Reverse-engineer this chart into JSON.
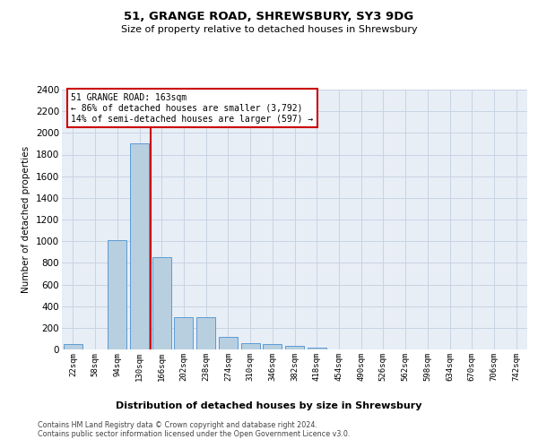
{
  "title1": "51, GRANGE ROAD, SHREWSBURY, SY3 9DG",
  "title2": "Size of property relative to detached houses in Shrewsbury",
  "xlabel": "Distribution of detached houses by size in Shrewsbury",
  "ylabel": "Number of detached properties",
  "categories": [
    "22sqm",
    "58sqm",
    "94sqm",
    "130sqm",
    "166sqm",
    "202sqm",
    "238sqm",
    "274sqm",
    "310sqm",
    "346sqm",
    "382sqm",
    "418sqm",
    "454sqm",
    "490sqm",
    "526sqm",
    "562sqm",
    "598sqm",
    "634sqm",
    "670sqm",
    "706sqm",
    "742sqm"
  ],
  "values": [
    50,
    0,
    1010,
    1900,
    850,
    300,
    300,
    120,
    60,
    50,
    30,
    15,
    0,
    0,
    0,
    0,
    0,
    0,
    0,
    0,
    0
  ],
  "bar_color": "#b8cfe0",
  "bar_edge_color": "#5b9bd5",
  "property_line_color": "#cc0000",
  "annotation_text": "51 GRANGE ROAD: 163sqm\n← 86% of detached houses are smaller (3,792)\n14% of semi-detached houses are larger (597) →",
  "annotation_box_edge_color": "#cc0000",
  "ylim_max": 2400,
  "ytick_step": 200,
  "footer1": "Contains HM Land Registry data © Crown copyright and database right 2024.",
  "footer2": "Contains public sector information licensed under the Open Government Licence v3.0.",
  "background_color": "#ffffff",
  "plot_bg_color": "#e8eef6",
  "grid_color": "#c8d4e3"
}
